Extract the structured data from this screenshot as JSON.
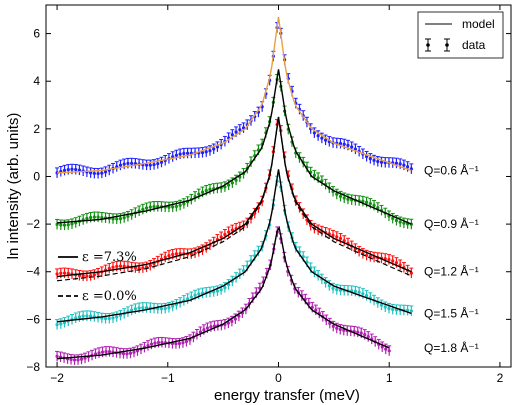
{
  "chart_data": {
    "type": "line",
    "xlabel": "energy transfer (meV)",
    "ylabel": "ln intensity (arb. units)",
    "xlim": [
      -2.1,
      2.1
    ],
    "ylim": [
      -8,
      7.2
    ],
    "x_ticks": [
      -2,
      -1,
      0,
      1,
      2
    ],
    "y_ticks": [
      -8,
      -6,
      -4,
      -2,
      0,
      2,
      4,
      6
    ],
    "x_tick_labels": [
      "−2",
      "−1",
      "0",
      "1",
      "2"
    ],
    "y_tick_labels": [
      "−8",
      "−6",
      "−4",
      "−2",
      "0",
      "2",
      "4",
      "6"
    ],
    "grid": false,
    "legend": {
      "placement": "top-right",
      "entries": [
        {
          "label": "model",
          "style": "line"
        },
        {
          "label": "data",
          "style": "errorbar"
        }
      ]
    },
    "annotations": [
      {
        "text": "ε =7.3%",
        "style": "solid"
      },
      {
        "text": "ε =0.0%",
        "style": "dashed"
      }
    ],
    "series": [
      {
        "name": "Q=0.6 Å⁻¹",
        "color": "#2020ff",
        "model_color": "#e8a040",
        "x": [
          -2.0,
          -1.6,
          -1.2,
          -0.8,
          -0.5,
          -0.3,
          -0.15,
          -0.07,
          0.0,
          0.07,
          0.15,
          0.3,
          0.5,
          0.8,
          1.2
        ],
        "y": [
          0.15,
          0.25,
          0.55,
          0.9,
          1.4,
          2.0,
          3.0,
          4.3,
          6.7,
          4.3,
          3.0,
          2.0,
          1.4,
          0.9,
          0.25
        ]
      },
      {
        "name": "Q=0.9 Å⁻¹",
        "color": "#109010",
        "model_color": "#000000",
        "x": [
          -2.0,
          -1.6,
          -1.2,
          -0.8,
          -0.5,
          -0.3,
          -0.15,
          -0.07,
          0.0,
          0.07,
          0.15,
          0.3,
          0.5,
          0.8,
          1.2
        ],
        "y": [
          -1.95,
          -1.8,
          -1.45,
          -1.0,
          -0.4,
          0.2,
          1.2,
          2.4,
          4.5,
          2.4,
          1.1,
          0.0,
          -0.6,
          -1.2,
          -2.0
        ]
      },
      {
        "name": "Q=1.2 Å⁻¹",
        "color": "#ff1010",
        "model_color": "#000000",
        "x": [
          -2.0,
          -1.6,
          -1.2,
          -0.8,
          -0.5,
          -0.3,
          -0.15,
          -0.07,
          0.0,
          0.07,
          0.15,
          0.3,
          0.5,
          0.8,
          1.2
        ],
        "y": [
          -4.2,
          -4.0,
          -3.7,
          -3.2,
          -2.6,
          -2.0,
          -1.0,
          0.2,
          2.5,
          0.2,
          -1.0,
          -2.0,
          -2.6,
          -3.2,
          -4.0
        ]
      },
      {
        "name": "Q=1.5 Å⁻¹",
        "color": "#20c0c0",
        "model_color": "#000000",
        "x": [
          -2.0,
          -1.6,
          -1.2,
          -0.8,
          -0.5,
          -0.3,
          -0.15,
          -0.07,
          0.0,
          0.07,
          0.15,
          0.3,
          0.5,
          0.8,
          1.2
        ],
        "y": [
          -6.1,
          -5.9,
          -5.6,
          -5.2,
          -4.6,
          -4.0,
          -3.0,
          -1.8,
          0.3,
          -1.8,
          -3.0,
          -4.0,
          -4.6,
          -5.1,
          -5.75
        ]
      },
      {
        "name": "Q=1.8 Å⁻¹",
        "color": "#b020b0",
        "model_color": "#000000",
        "x": [
          -2.0,
          -1.6,
          -1.2,
          -0.8,
          -0.5,
          -0.3,
          -0.15,
          -0.07,
          0.0,
          0.07,
          0.15,
          0.3,
          0.5,
          0.8,
          1.0
        ],
        "y": [
          -7.65,
          -7.5,
          -7.2,
          -6.8,
          -6.2,
          -5.6,
          -4.7,
          -3.7,
          -2.0,
          -3.7,
          -4.7,
          -5.6,
          -6.2,
          -6.8,
          -7.2
        ]
      }
    ]
  }
}
